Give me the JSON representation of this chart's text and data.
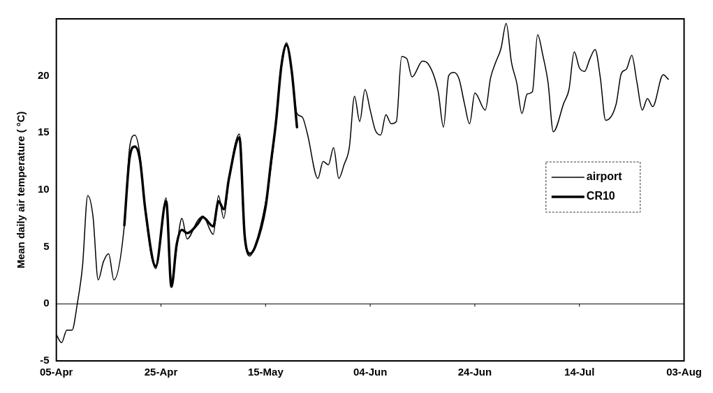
{
  "chart_data": {
    "type": "line",
    "ylabel": "Mean daily air temperature ( °C)",
    "xlim": [
      "--04-05",
      "--08-03"
    ],
    "xticks": [
      {
        "value": "--04-05",
        "label": "05-Apr"
      },
      {
        "value": "--04-25",
        "label": "25-Apr"
      },
      {
        "value": "--05-15",
        "label": "15-May"
      },
      {
        "value": "--06-04",
        "label": "04-Jun"
      },
      {
        "value": "--06-24",
        "label": "24-Jun"
      },
      {
        "value": "--07-14",
        "label": "14-Jul"
      },
      {
        "value": "--08-03",
        "label": "03-Aug"
      }
    ],
    "ylim": [
      -5,
      25
    ],
    "yticks": [
      -5,
      0,
      5,
      10,
      15,
      20
    ],
    "grid": false,
    "legend": "right",
    "marker": "none",
    "line_style": "solid",
    "ref_lines": [
      {
        "axis": "y",
        "value": 0,
        "color": "#000000"
      }
    ],
    "series": [
      {
        "name": "airport",
        "color": "#000000",
        "x": [
          "--04-05",
          "--04-06",
          "--04-07",
          "--04-08",
          "--04-09",
          "--04-10",
          "--04-11",
          "--04-12",
          "--04-13",
          "--04-14",
          "--04-15",
          "--04-16",
          "--04-18",
          "--04-19",
          "--04-20",
          "--04-21",
          "--04-22",
          "--04-24",
          "--04-26",
          "--04-27",
          "--04-28",
          "--04-29",
          "--04-30",
          "--05-02",
          "--05-03",
          "--05-05",
          "--05-06",
          "--05-07",
          "--05-08",
          "--05-10",
          "--05-11",
          "--05-12",
          "--05-13",
          "--05-15",
          "--05-16",
          "--05-17",
          "--05-18",
          "--05-19",
          "--05-20",
          "--05-21",
          "--05-22",
          "--05-23",
          "--05-25",
          "--05-26",
          "--05-27",
          "--05-28",
          "--05-29",
          "--05-30",
          "--05-31",
          "--06-01",
          "--06-02",
          "--06-03",
          "--06-04",
          "--06-05",
          "--06-06",
          "--06-07",
          "--06-08",
          "--06-09",
          "--06-10",
          "--06-11",
          "--06-12",
          "--06-14",
          "--06-15",
          "--06-17",
          "--06-18",
          "--06-19",
          "--06-20",
          "--06-21",
          "--06-22",
          "--06-23",
          "--06-24",
          "--06-26",
          "--06-27",
          "--06-28",
          "--06-29",
          "--06-30",
          "--07-01",
          "--07-02",
          "--07-03",
          "--07-04",
          "--07-05",
          "--07-06",
          "--07-07",
          "--07-08",
          "--07-09",
          "--07-11",
          "--07-12",
          "--07-13",
          "--07-14",
          "--07-15",
          "--07-16",
          "--07-17",
          "--07-18",
          "--07-19",
          "--07-21",
          "--07-22",
          "--07-23",
          "--07-24",
          "--07-25",
          "--07-26",
          "--07-27",
          "--07-28",
          "--07-30",
          "--07-31"
        ],
        "values": [
          -2.7,
          -3.4,
          -2.3,
          -2.3,
          0,
          3.3,
          9.5,
          7.7,
          2.1,
          3.7,
          4.4,
          2.1,
          6.9,
          13.7,
          14.8,
          13.0,
          8.1,
          3.1,
          9.3,
          1.6,
          4.9,
          7.5,
          5.7,
          7.3,
          7.7,
          6.1,
          9.5,
          7.5,
          11.0,
          14.9,
          5.9,
          4.2,
          5.1,
          8.9,
          11.9,
          16.0,
          21.0,
          22.9,
          20.4,
          16.7,
          16.4,
          14.9,
          11.0,
          12.5,
          12.2,
          13.7,
          11.0,
          12.2,
          13.7,
          18.2,
          16.0,
          18.8,
          17.0,
          15.2,
          14.8,
          16.6,
          15.8,
          16.0,
          21.7,
          21.5,
          19.9,
          21.3,
          21.1,
          18.6,
          15.5,
          20.0,
          20.3,
          19.7,
          17.6,
          15.8,
          18.5,
          17.0,
          19.8,
          21.2,
          22.4,
          24.6,
          21.2,
          19.4,
          16.7,
          18.4,
          18.6,
          23.6,
          21.8,
          19.4,
          15.1,
          17.6,
          18.8,
          22.1,
          20.7,
          20.4,
          21.5,
          22.3,
          19.8,
          16.1,
          17.5,
          20.2,
          20.6,
          21.8,
          19.4,
          17.0,
          18.0,
          17.3,
          20.1,
          19.7
        ]
      },
      {
        "name": "CR10",
        "color": "#000000",
        "x": [
          "--04-18",
          "--04-19",
          "--04-20",
          "--04-21",
          "--04-22",
          "--04-24",
          "--04-26",
          "--04-27",
          "--04-28",
          "--04-29",
          "--04-30",
          "--05-02",
          "--05-03",
          "--05-05",
          "--05-06",
          "--05-07",
          "--05-08",
          "--05-10",
          "--05-11",
          "--05-12",
          "--05-13",
          "--05-15",
          "--05-16",
          "--05-17",
          "--05-18",
          "--05-19",
          "--05-20",
          "--05-21"
        ],
        "values": [
          6.9,
          12.8,
          13.8,
          12.6,
          8.3,
          3.3,
          9.0,
          1.5,
          5.2,
          6.5,
          6.2,
          7.0,
          7.6,
          6.8,
          9.0,
          8.3,
          11.0,
          14.6,
          6.0,
          4.4,
          5.0,
          8.5,
          12.3,
          16.0,
          20.8,
          22.7,
          20.4,
          15.5
        ]
      }
    ]
  }
}
